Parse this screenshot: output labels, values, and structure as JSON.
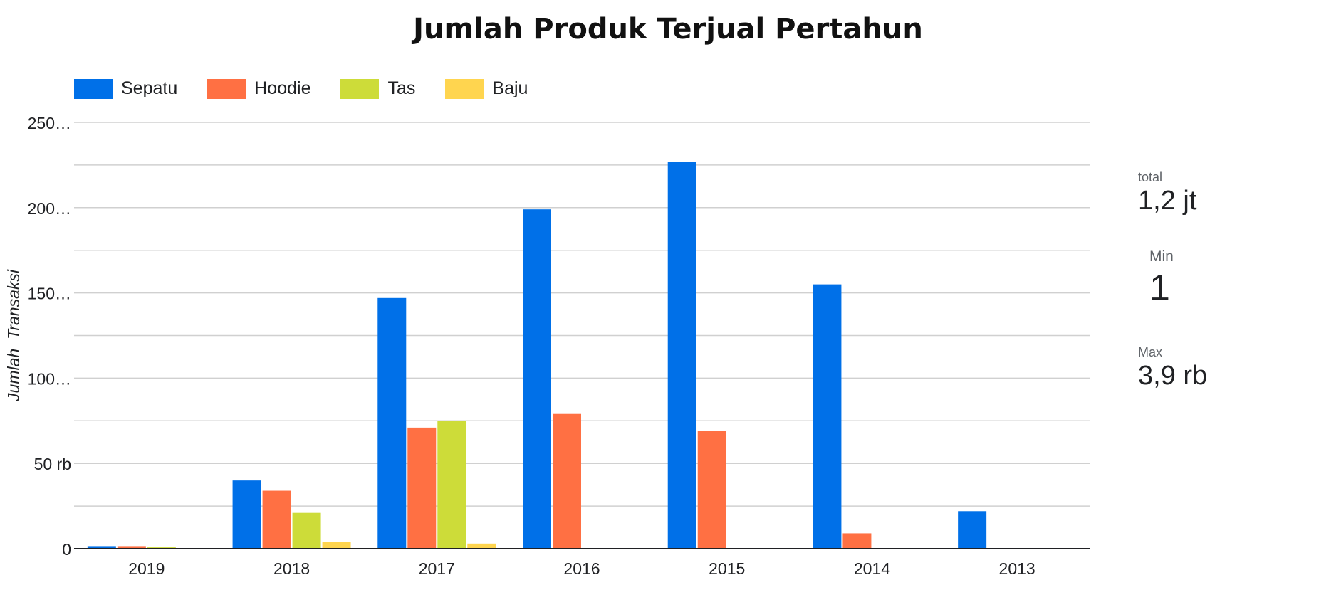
{
  "chart_data": {
    "type": "bar",
    "title": "Jumlah Produk Terjual Pertahun",
    "xlabel": "",
    "ylabel": "Jumlah_Transaksi",
    "categories": [
      "2019",
      "2018",
      "2017",
      "2016",
      "2015",
      "2014",
      "2013"
    ],
    "ylim": [
      0,
      250000
    ],
    "y_ticks": [
      0,
      50000,
      100000,
      150000,
      200000,
      250000
    ],
    "y_tick_labels": [
      "0",
      "50 rb",
      "100…",
      "150…",
      "200…",
      "250…"
    ],
    "grid": true,
    "legend_position": "top-left",
    "series": [
      {
        "name": "Sepatu",
        "color": "#0070e8",
        "values": [
          1500,
          40000,
          147000,
          199000,
          227000,
          155000,
          22000
        ]
      },
      {
        "name": "Hoodie",
        "color": "#ff7043",
        "values": [
          1500,
          34000,
          71000,
          79000,
          69000,
          9000,
          0
        ]
      },
      {
        "name": "Tas",
        "color": "#cddc39",
        "values": [
          800,
          21000,
          75000,
          0,
          0,
          0,
          0
        ]
      },
      {
        "name": "Baju",
        "color": "#ffd54f",
        "values": [
          0,
          4000,
          3000,
          0,
          0,
          0,
          0
        ]
      }
    ]
  },
  "scorecards": {
    "total": {
      "label": "total",
      "value": "1,2 jt"
    },
    "min": {
      "label": "Min",
      "value": "1"
    },
    "max": {
      "label": "Max",
      "value": "3,9 rb"
    }
  }
}
